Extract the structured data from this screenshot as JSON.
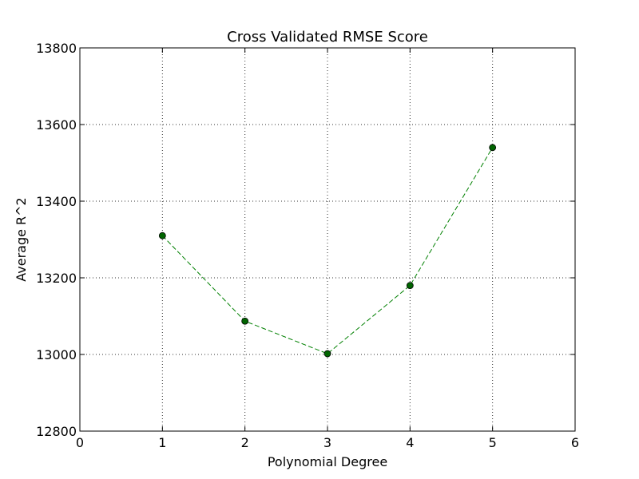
{
  "chart_data": {
    "type": "line",
    "title": "Cross Validated RMSE Score",
    "xlabel": "Polynomial Degree",
    "ylabel": "Average R^2",
    "xlim": [
      0,
      6
    ],
    "ylim": [
      12800,
      13800
    ],
    "xticks": [
      0,
      1,
      2,
      3,
      4,
      5,
      6
    ],
    "yticks": [
      12800,
      13000,
      13200,
      13400,
      13600,
      13800
    ],
    "grid": true,
    "series": [
      {
        "x": [
          1,
          2,
          3,
          4,
          5
        ],
        "y": [
          13310,
          13087,
          13002,
          13180,
          13540
        ],
        "color": "#008000",
        "marker_color": "#006400",
        "line_style": "dashed",
        "marker": "circle"
      }
    ]
  }
}
